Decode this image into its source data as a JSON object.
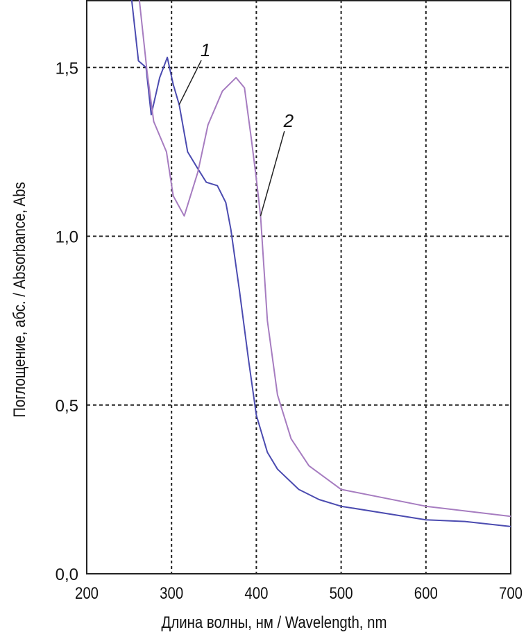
{
  "chart_data": {
    "type": "line",
    "title": "",
    "xlabel": "Длина волны, нм / Wavelength, nm",
    "ylabel": "Поглощение, абс. / Absorbance, Abs",
    "xlim": [
      200,
      700
    ],
    "ylim": [
      0,
      1.7
    ],
    "xticks": [
      200,
      300,
      400,
      500,
      600,
      700
    ],
    "xtick_labels": [
      "200",
      "300",
      "400",
      "500",
      "600",
      "700"
    ],
    "yticks": [
      0,
      0.5,
      1.0,
      1.5
    ],
    "ytick_labels": [
      "0,0",
      "0,5",
      "1,0",
      "1,5"
    ],
    "grid": true,
    "grid_style": "dashed",
    "series": [
      {
        "label": "1",
        "color": "#4b4bb0",
        "x": [
          253,
          261,
          270,
          276,
          286,
          295,
          302,
          309,
          319,
          331,
          341,
          354,
          364,
          370,
          380,
          391,
          400,
          413,
          425,
          450,
          474,
          500,
          600,
          646,
          700
        ],
        "y": [
          1.7,
          1.52,
          1.5,
          1.36,
          1.47,
          1.53,
          1.45,
          1.39,
          1.25,
          1.2,
          1.16,
          1.15,
          1.1,
          1.02,
          0.84,
          0.63,
          0.47,
          0.36,
          0.31,
          0.25,
          0.22,
          0.2,
          0.16,
          0.155,
          0.14
        ]
      },
      {
        "label": "2",
        "color": "#a67cc0",
        "x": [
          262,
          271,
          279,
          294,
          302,
          315,
          331,
          343,
          360,
          376,
          386,
          394,
          400,
          405,
          413,
          425,
          441,
          462,
          500,
          600,
          700
        ],
        "y": [
          1.7,
          1.49,
          1.34,
          1.25,
          1.12,
          1.06,
          1.19,
          1.33,
          1.43,
          1.47,
          1.44,
          1.29,
          1.17,
          1.06,
          0.75,
          0.53,
          0.4,
          0.32,
          0.25,
          0.2,
          0.17
        ]
      }
    ],
    "annotations": [
      {
        "text": "1",
        "label_at": [
          340,
          1.55
        ],
        "points_to": [
          309,
          1.39
        ]
      },
      {
        "text": "2",
        "label_at": [
          438,
          1.34
        ],
        "points_to": [
          405,
          1.06
        ]
      }
    ]
  }
}
